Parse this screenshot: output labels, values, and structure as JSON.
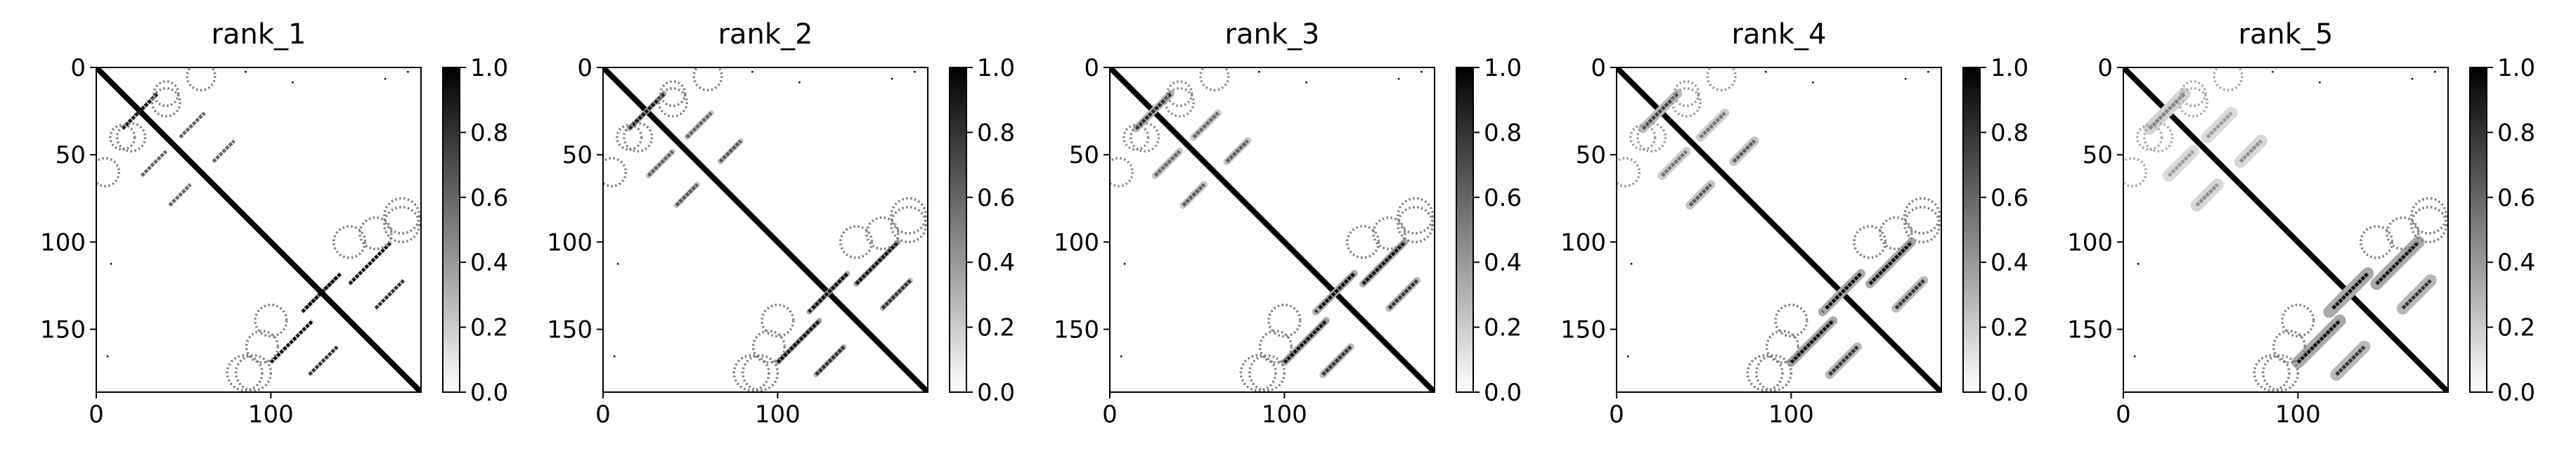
{
  "chart_data": [
    {
      "type": "heatmap",
      "title": "rank_1",
      "xlabel": "",
      "ylabel": "",
      "xlim": [
        0,
        186
      ],
      "ylim": [
        186,
        0
      ],
      "x_ticks": [
        0,
        100
      ],
      "y_ticks": [
        0,
        50,
        100,
        150
      ],
      "colorbar": {
        "ticks": [
          "0.0",
          "0.2",
          "0.4",
          "0.6",
          "0.8",
          "1.0"
        ],
        "range": [
          0.0,
          1.0
        ],
        "colormap": "Greys"
      },
      "features": {
        "main_diagonal": {
          "from": 0,
          "to": 186,
          "value": 1.0
        },
        "antidiagonal_stems": [
          {
            "center": [
              25,
              25
            ],
            "half_length": 10,
            "value": 0.9
          },
          {
            "center": [
              33,
              55
            ],
            "half_length": 7,
            "value": 0.6
          },
          {
            "center": [
              48,
              73
            ],
            "half_length": 6,
            "value": 0.6
          },
          {
            "center": [
              112,
              157
            ],
            "half_length": 12,
            "value": 0.95
          },
          {
            "center": [
              130,
              168
            ],
            "half_length": 8,
            "value": 0.8
          },
          {
            "center": [
              128,
              130
            ],
            "half_length": 10,
            "value": 0.95
          }
        ],
        "dotted_arcs": [
          {
            "center": [
              5,
              60
            ],
            "radius": 8,
            "value": 0.5
          },
          {
            "center": [
              15,
              40
            ],
            "radius": 7,
            "value": 0.5
          },
          {
            "center": [
              40,
              20
            ],
            "radius": 8,
            "value": 0.5
          },
          {
            "center": [
              160,
              95
            ],
            "radius": 9,
            "value": 0.5
          },
          {
            "center": [
              100,
              145
            ],
            "radius": 9,
            "value": 0.5
          },
          {
            "center": [
              90,
              175
            ],
            "radius": 10,
            "value": 0.5
          },
          {
            "center": [
              175,
              85
            ],
            "radius": 10,
            "value": 0.5
          }
        ],
        "blur": 0.0
      }
    },
    {
      "type": "heatmap",
      "title": "rank_2",
      "xlabel": "",
      "ylabel": "",
      "xlim": [
        0,
        186
      ],
      "ylim": [
        186,
        0
      ],
      "x_ticks": [
        0,
        100
      ],
      "y_ticks": [
        0,
        50,
        100,
        150
      ],
      "colorbar": {
        "ticks": [
          "0.0",
          "0.2",
          "0.4",
          "0.6",
          "0.8",
          "1.0"
        ],
        "range": [
          0.0,
          1.0
        ],
        "colormap": "Greys"
      },
      "features": {
        "main_diagonal": {
          "from": 0,
          "to": 186,
          "value": 1.0
        },
        "antidiagonal_stems": [
          {
            "center": [
              25,
              25
            ],
            "half_length": 10,
            "value": 0.9
          },
          {
            "center": [
              33,
              55
            ],
            "half_length": 7,
            "value": 0.6
          },
          {
            "center": [
              48,
              73
            ],
            "half_length": 6,
            "value": 0.65
          },
          {
            "center": [
              112,
              157
            ],
            "half_length": 12,
            "value": 0.95
          },
          {
            "center": [
              130,
              168
            ],
            "half_length": 8,
            "value": 0.8
          },
          {
            "center": [
              128,
              130
            ],
            "half_length": 10,
            "value": 0.95
          }
        ],
        "dotted_arcs": [
          {
            "center": [
              5,
              60
            ],
            "radius": 8,
            "value": 0.5
          },
          {
            "center": [
              15,
              40
            ],
            "radius": 7,
            "value": 0.5
          },
          {
            "center": [
              40,
              20
            ],
            "radius": 8,
            "value": 0.5
          },
          {
            "center": [
              160,
              95
            ],
            "radius": 9,
            "value": 0.5
          },
          {
            "center": [
              100,
              145
            ],
            "radius": 9,
            "value": 0.5
          },
          {
            "center": [
              90,
              175
            ],
            "radius": 10,
            "value": 0.5
          },
          {
            "center": [
              175,
              85
            ],
            "radius": 10,
            "value": 0.5
          }
        ],
        "blur": 0.1
      }
    },
    {
      "type": "heatmap",
      "title": "rank_3",
      "xlabel": "",
      "ylabel": "",
      "xlim": [
        0,
        186
      ],
      "ylim": [
        186,
        0
      ],
      "x_ticks": [
        0,
        100
      ],
      "y_ticks": [
        0,
        50,
        100,
        150
      ],
      "colorbar": {
        "ticks": [
          "0.0",
          "0.2",
          "0.4",
          "0.6",
          "0.8",
          "1.0"
        ],
        "range": [
          0.0,
          1.0
        ],
        "colormap": "Greys"
      },
      "features": {
        "main_diagonal": {
          "from": 0,
          "to": 186,
          "value": 1.0
        },
        "antidiagonal_stems": [
          {
            "center": [
              25,
              25
            ],
            "half_length": 10,
            "value": 0.85
          },
          {
            "center": [
              33,
              55
            ],
            "half_length": 7,
            "value": 0.6
          },
          {
            "center": [
              48,
              73
            ],
            "half_length": 6,
            "value": 0.65
          },
          {
            "center": [
              112,
              157
            ],
            "half_length": 12,
            "value": 0.95
          },
          {
            "center": [
              130,
              168
            ],
            "half_length": 8,
            "value": 0.8
          },
          {
            "center": [
              128,
              130
            ],
            "half_length": 10,
            "value": 0.95
          }
        ],
        "dotted_arcs": [
          {
            "center": [
              5,
              60
            ],
            "radius": 8,
            "value": 0.45
          },
          {
            "center": [
              15,
              40
            ],
            "radius": 7,
            "value": 0.45
          },
          {
            "center": [
              40,
              20
            ],
            "radius": 8,
            "value": 0.45
          },
          {
            "center": [
              160,
              95
            ],
            "radius": 9,
            "value": 0.5
          },
          {
            "center": [
              100,
              145
            ],
            "radius": 9,
            "value": 0.5
          },
          {
            "center": [
              90,
              175
            ],
            "radius": 10,
            "value": 0.5
          },
          {
            "center": [
              175,
              85
            ],
            "radius": 10,
            "value": 0.5
          }
        ],
        "blur": 0.2
      }
    },
    {
      "type": "heatmap",
      "title": "rank_4",
      "xlabel": "",
      "ylabel": "",
      "xlim": [
        0,
        186
      ],
      "ylim": [
        186,
        0
      ],
      "x_ticks": [
        0,
        100
      ],
      "y_ticks": [
        0,
        50,
        100,
        150
      ],
      "colorbar": {
        "ticks": [
          "0.0",
          "0.2",
          "0.4",
          "0.6",
          "0.8",
          "1.0"
        ],
        "range": [
          0.0,
          1.0
        ],
        "colormap": "Greys"
      },
      "features": {
        "main_diagonal": {
          "from": 0,
          "to": 186,
          "value": 1.0
        },
        "antidiagonal_stems": [
          {
            "center": [
              25,
              25
            ],
            "half_length": 10,
            "value": 0.75
          },
          {
            "center": [
              33,
              55
            ],
            "half_length": 7,
            "value": 0.55
          },
          {
            "center": [
              48,
              73
            ],
            "half_length": 6,
            "value": 0.65
          },
          {
            "center": [
              112,
              157
            ],
            "half_length": 12,
            "value": 0.95
          },
          {
            "center": [
              130,
              168
            ],
            "half_length": 8,
            "value": 0.8
          },
          {
            "center": [
              128,
              130
            ],
            "half_length": 10,
            "value": 0.95
          }
        ],
        "dotted_arcs": [
          {
            "center": [
              5,
              60
            ],
            "radius": 8,
            "value": 0.4
          },
          {
            "center": [
              15,
              40
            ],
            "radius": 7,
            "value": 0.4
          },
          {
            "center": [
              40,
              20
            ],
            "radius": 8,
            "value": 0.4
          },
          {
            "center": [
              160,
              95
            ],
            "radius": 9,
            "value": 0.5
          },
          {
            "center": [
              100,
              145
            ],
            "radius": 9,
            "value": 0.5
          },
          {
            "center": [
              90,
              175
            ],
            "radius": 10,
            "value": 0.5
          },
          {
            "center": [
              175,
              85
            ],
            "radius": 10,
            "value": 0.5
          }
        ],
        "blur": 0.3
      }
    },
    {
      "type": "heatmap",
      "title": "rank_5",
      "xlabel": "",
      "ylabel": "",
      "xlim": [
        0,
        186
      ],
      "ylim": [
        186,
        0
      ],
      "x_ticks": [
        0,
        100
      ],
      "y_ticks": [
        0,
        50,
        100,
        150
      ],
      "colorbar": {
        "ticks": [
          "0.0",
          "0.2",
          "0.4",
          "0.6",
          "0.8",
          "1.0"
        ],
        "range": [
          0.0,
          1.0
        ],
        "colormap": "Greys"
      },
      "features": {
        "main_diagonal": {
          "from": 0,
          "to": 186,
          "value": 1.0
        },
        "antidiagonal_stems": [
          {
            "center": [
              25,
              25
            ],
            "half_length": 10,
            "value": 0.5
          },
          {
            "center": [
              33,
              55
            ],
            "half_length": 7,
            "value": 0.4
          },
          {
            "center": [
              48,
              73
            ],
            "half_length": 6,
            "value": 0.45
          },
          {
            "center": [
              112,
              157
            ],
            "half_length": 12,
            "value": 0.95
          },
          {
            "center": [
              130,
              168
            ],
            "half_length": 8,
            "value": 0.8
          },
          {
            "center": [
              128,
              130
            ],
            "half_length": 10,
            "value": 0.95
          }
        ],
        "dotted_arcs": [
          {
            "center": [
              5,
              60
            ],
            "radius": 8,
            "value": 0.35
          },
          {
            "center": [
              15,
              40
            ],
            "radius": 7,
            "value": 0.35
          },
          {
            "center": [
              40,
              20
            ],
            "radius": 8,
            "value": 0.35
          },
          {
            "center": [
              160,
              95
            ],
            "radius": 9,
            "value": 0.5
          },
          {
            "center": [
              100,
              145
            ],
            "radius": 9,
            "value": 0.5
          },
          {
            "center": [
              90,
              175
            ],
            "radius": 10,
            "value": 0.5
          },
          {
            "center": [
              175,
              85
            ],
            "radius": 10,
            "value": 0.5
          }
        ],
        "blur": 0.5
      }
    }
  ]
}
